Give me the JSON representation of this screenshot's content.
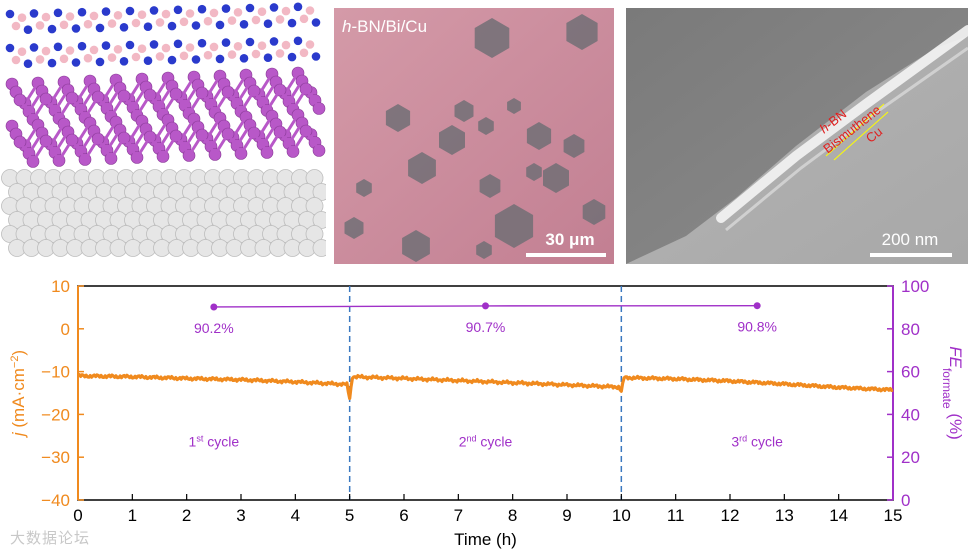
{
  "panels": {
    "optical": {
      "label": "h-BN/Bi/Cu",
      "label_italic": "h",
      "label_rest": "-BN/Bi/Cu",
      "scale_bar": "30 μm"
    },
    "sem": {
      "layer_labels": [
        "h-BN",
        "Bismuthene",
        "Cu"
      ],
      "scale_bar": "200 nm"
    }
  },
  "watermark": "大数据论坛",
  "colors": {
    "current": "#f08a1e",
    "fe": "#a030c8",
    "divider": "#3a78c0",
    "hbn_blue": "#2a3acc",
    "hbn_pink": "#f2b8c4",
    "bismuth": "#b858c8",
    "copper_sphere": "#e6e6e6"
  },
  "chart_data": {
    "type": "line",
    "xlabel": "Time (h)",
    "ylabel_left": "j (mA·cm⁻²)",
    "ylabel_left_italic": "j",
    "ylabel_left_rest": " (mA·cm",
    "ylabel_left_sup": "−2",
    "ylabel_left_end": ")",
    "ylabel_right": "FEformate (%)",
    "ylabel_right_main": "FE",
    "ylabel_right_sub": "formate",
    "ylabel_right_end": " (%)",
    "xlim": [
      0,
      15
    ],
    "ylim_left": [
      -40,
      10
    ],
    "ylim_right": [
      0,
      100
    ],
    "x_ticks": [
      0,
      1,
      2,
      3,
      4,
      5,
      6,
      7,
      8,
      9,
      10,
      11,
      12,
      13,
      14,
      15
    ],
    "y_ticks_left": [
      10,
      0,
      -10,
      -20,
      -30,
      -40
    ],
    "y_ticks_right": [
      100,
      80,
      60,
      40,
      20,
      0
    ],
    "cycle_boundaries": [
      5,
      10
    ],
    "current_series": {
      "name": "j",
      "x": [
        0,
        1,
        2,
        3,
        4,
        4.95,
        5,
        5.05,
        6,
        7,
        8,
        9,
        9.95,
        10,
        10.05,
        11,
        12,
        13,
        14,
        15
      ],
      "y": [
        -11.0,
        -11.2,
        -11.6,
        -11.9,
        -12.4,
        -13.0,
        -16.2,
        -11.2,
        -11.6,
        -12.1,
        -12.6,
        -13.1,
        -13.6,
        -14.6,
        -11.4,
        -11.7,
        -12.2,
        -12.9,
        -13.7,
        -14.3
      ]
    },
    "fe_series": {
      "name": "FE",
      "x": [
        2.5,
        7.5,
        12.5
      ],
      "y": [
        90.2,
        90.7,
        90.8
      ],
      "labels": [
        "90.2%",
        "90.7%",
        "90.8%"
      ]
    },
    "cycle_labels": [
      {
        "x": 2.5,
        "num": "1",
        "sup": "st",
        "text": " cycle"
      },
      {
        "x": 7.5,
        "num": "2",
        "sup": "nd",
        "text": " cycle"
      },
      {
        "x": 12.5,
        "num": "3",
        "sup": "rd",
        "text": " cycle"
      }
    ]
  }
}
